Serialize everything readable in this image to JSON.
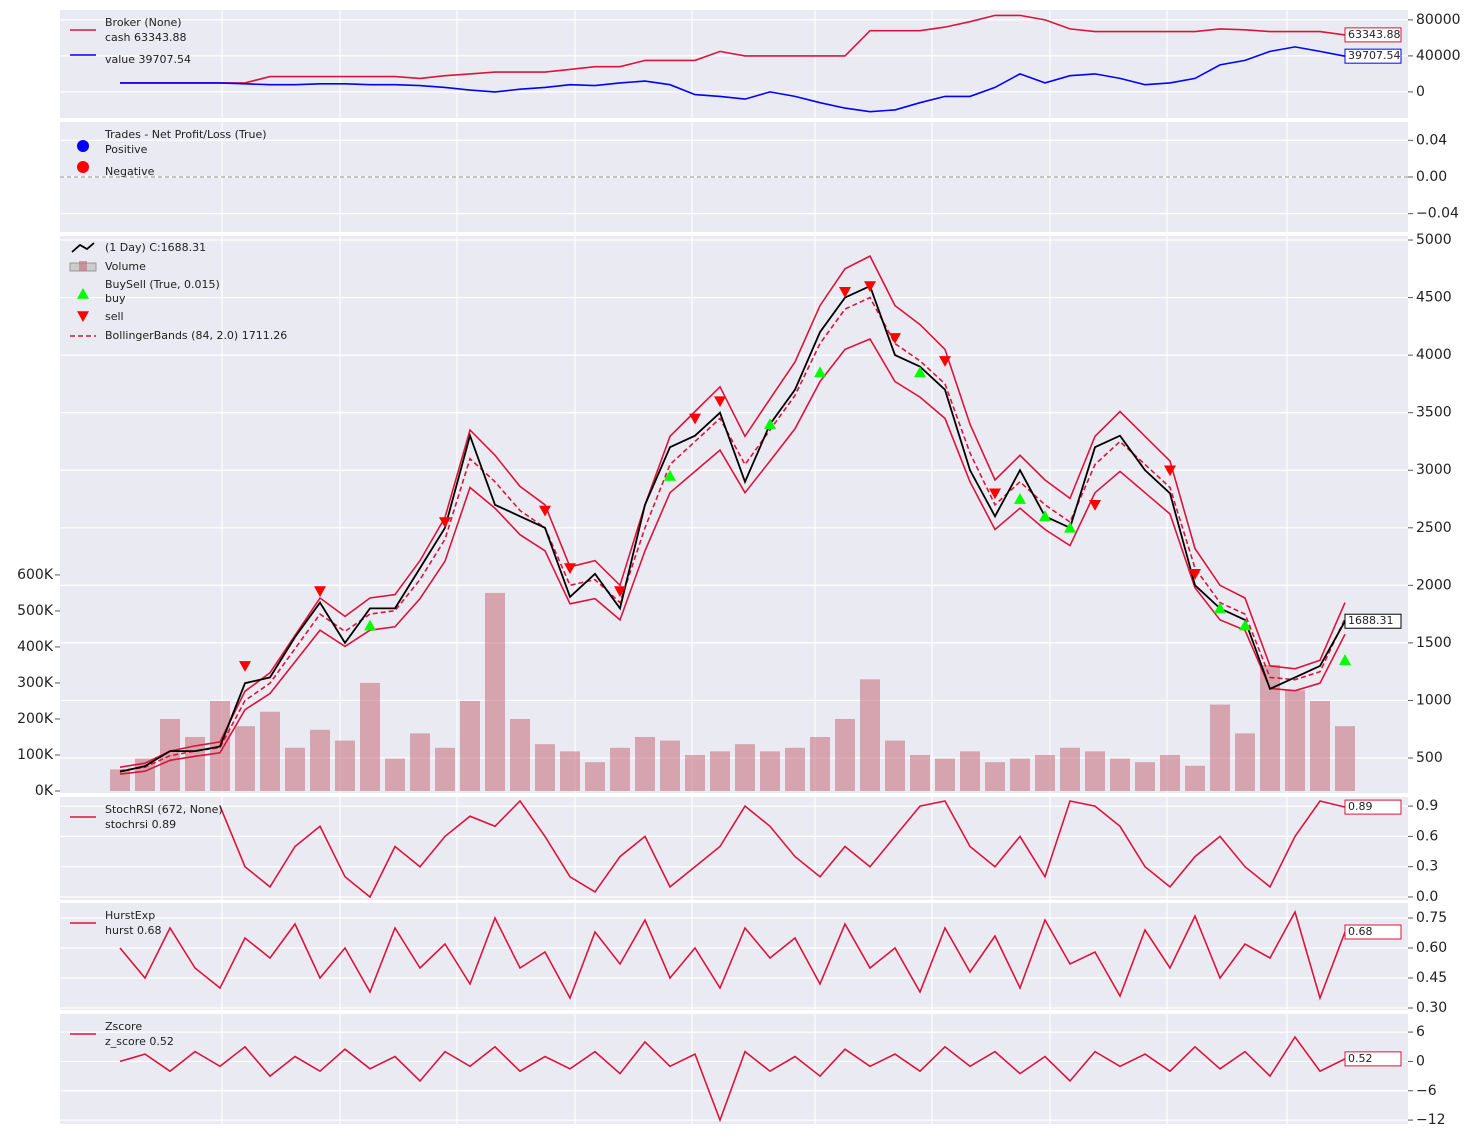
{
  "chart_data": [
    {
      "type": "line",
      "legend_title": "Broker (None)",
      "series": [
        {
          "name": "cash 63343.88",
          "color": "#dc143c",
          "values": [
            10000,
            10000,
            10000,
            10000,
            10000,
            10000,
            17000,
            17000,
            17000,
            17000,
            17000,
            17000,
            15000,
            18000,
            20000,
            22000,
            22000,
            22000,
            25000,
            28000,
            28000,
            35000,
            35000,
            35000,
            45000,
            40000,
            40000,
            40000,
            40000,
            40000,
            68000,
            68000,
            68000,
            72000,
            78000,
            85000,
            85000,
            80000,
            70000,
            67000,
            67000,
            67000,
            67000,
            67000,
            70000,
            69000,
            67000,
            67000,
            67000,
            63343.88
          ]
        },
        {
          "name": "value 39707.54",
          "color": "#0000ff",
          "values": [
            10000,
            10000,
            10000,
            10000,
            10000,
            9000,
            8000,
            8000,
            9000,
            9000,
            8000,
            8000,
            7000,
            5000,
            2000,
            0,
            3000,
            5000,
            8000,
            7000,
            10000,
            12000,
            8000,
            -3000,
            -5000,
            -8000,
            0,
            -5000,
            -12000,
            -18000,
            -22000,
            -20000,
            -12000,
            -5000,
            -5000,
            5000,
            20000,
            10000,
            18000,
            20000,
            15000,
            8000,
            10000,
            15000,
            30000,
            35000,
            45000,
            50000,
            45000,
            39707.54
          ]
        }
      ],
      "ylim": [
        -29000,
        91000
      ],
      "yticks": [
        0,
        40000,
        80000
      ],
      "grid": true
    },
    {
      "type": "scatter",
      "legend_title": "Trades - Net Profit/Loss (True)",
      "series": [
        {
          "name": "Positive",
          "color": "#0000ff"
        },
        {
          "name": "Negative",
          "color": "#ff0000"
        }
      ],
      "ylim": [
        -0.06,
        0.06
      ],
      "yticks": [
        {
          "value": -0.04,
          "label": "−0.04"
        },
        {
          "value": 0,
          "label": "0.00"
        },
        0.04
      ],
      "grid": true
    },
    {
      "type": "line",
      "close": {
        "name": " (1 Day) C:1688.31",
        "color": "#000000",
        "values": [
          380,
          430,
          560,
          560,
          600,
          1150,
          1200,
          1550,
          1850,
          1500,
          1800,
          1800,
          2150,
          2500,
          3300,
          2700,
          2600,
          2500,
          1900,
          2100,
          1800,
          2700,
          3200,
          3300,
          3500,
          2900,
          3400,
          3700,
          4200,
          4500,
          4600,
          4000,
          3900,
          3700,
          3000,
          2600,
          3000,
          2600,
          2500,
          3200,
          3300,
          3000,
          2800,
          2000,
          1800,
          1700,
          1100,
          1200,
          1300,
          1688.31
        ]
      },
      "volume": {
        "name": "Volume",
        "color": "#c46a78",
        "values": [
          60000,
          90000,
          200000,
          150000,
          250000,
          180000,
          220000,
          120000,
          170000,
          140000,
          300000,
          90000,
          160000,
          120000,
          250000,
          550000,
          200000,
          130000,
          110000,
          80000,
          120000,
          150000,
          140000,
          100000,
          110000,
          130000,
          110000,
          120000,
          150000,
          200000,
          310000,
          140000,
          100000,
          90000,
          110000,
          80000,
          90000,
          100000,
          120000,
          110000,
          90000,
          80000,
          100000,
          70000,
          240000,
          160000,
          350000,
          280000,
          250000,
          180000
        ],
        "ylim": [
          0,
          1541000
        ],
        "yticks": [
          {
            "value": 0,
            "label": "0K"
          },
          {
            "value": 100000,
            "label": "100K"
          },
          {
            "value": 200000,
            "label": "200K"
          },
          {
            "value": 300000,
            "label": "300K"
          },
          {
            "value": 400000,
            "label": "400K"
          },
          {
            "value": 500000,
            "label": "500K"
          },
          {
            "value": 600000,
            "label": "600K"
          }
        ]
      },
      "buysell": {
        "name": "BuySell (True, 0.015)",
        "series": [
          {
            "name": "buy",
            "color": "#00ff00",
            "values": [
              null,
              null,
              null,
              null,
              null,
              null,
              null,
              null,
              null,
              null,
              1650,
              null,
              null,
              null,
              null,
              null,
              null,
              null,
              null,
              null,
              null,
              null,
              2950,
              null,
              null,
              null,
              3400,
              null,
              3850,
              null,
              null,
              null,
              3850,
              null,
              null,
              null,
              2750,
              2600,
              2500,
              null,
              null,
              null,
              null,
              null,
              1800,
              1650,
              null,
              null,
              null,
              1350
            ]
          },
          {
            "name": "sell",
            "color": "#ff0000",
            "values": [
              null,
              null,
              null,
              null,
              null,
              1300,
              null,
              null,
              1950,
              null,
              null,
              null,
              null,
              2550,
              null,
              null,
              null,
              2650,
              2150,
              null,
              1950,
              null,
              null,
              3450,
              3600,
              null,
              null,
              null,
              null,
              4550,
              4600,
              4150,
              null,
              3950,
              null,
              2800,
              null,
              null,
              null,
              2700,
              null,
              null,
              3000,
              2100,
              null,
              null,
              null,
              null,
              null,
              null
            ]
          }
        ]
      },
      "bollinger": {
        "name": "BollingerBands (84, 2.0) 1711.26",
        "color": "#dc143c",
        "mid": [
          390,
          420,
          520,
          560,
          590,
          1000,
          1150,
          1450,
          1750,
          1600,
          1750,
          1780,
          2050,
          2400,
          3100,
          2900,
          2650,
          2500,
          2000,
          2050,
          1850,
          2500,
          3050,
          3250,
          3450,
          3050,
          3350,
          3650,
          4100,
          4400,
          4500,
          4100,
          3950,
          3750,
          3150,
          2700,
          2900,
          2700,
          2550,
          3050,
          3250,
          3050,
          2850,
          2150,
          1850,
          1750,
          1200,
          1180,
          1250,
          1711.26
        ],
        "top": [
          420,
          455,
          560,
          605,
          640,
          1080,
          1240,
          1565,
          1890,
          1730,
          1890,
          1920,
          2215,
          2590,
          3350,
          3130,
          2860,
          2700,
          2160,
          2215,
          2000,
          2700,
          3295,
          3510,
          3725,
          3295,
          3620,
          3940,
          4430,
          4750,
          4860,
          4430,
          4265,
          4050,
          3400,
          2915,
          3130,
          2915,
          2755,
          3295,
          3510,
          3295,
          3080,
          2320,
          2000,
          1890,
          1300,
          1275,
          1350,
          1850
        ],
        "bot": [
          360,
          385,
          480,
          515,
          545,
          920,
          1060,
          1335,
          1610,
          1470,
          1610,
          1640,
          1885,
          2210,
          2850,
          2670,
          2440,
          2300,
          1840,
          1885,
          1700,
          2300,
          2805,
          2990,
          3175,
          2805,
          3080,
          3360,
          3770,
          4050,
          4140,
          3770,
          3635,
          3450,
          2900,
          2485,
          2670,
          2485,
          2345,
          2805,
          2990,
          2805,
          2620,
          1980,
          1700,
          1610,
          1105,
          1085,
          1150,
          1575
        ]
      },
      "ylim": [
        196,
        5035
      ],
      "yticks": [
        500,
        1000,
        1500,
        2000,
        2500,
        3000,
        3500,
        4000,
        4500,
        5000
      ],
      "grid": true
    },
    {
      "type": "line",
      "legend_title": "StochRSI (672, None)",
      "series": [
        {
          "name": "stochrsi 0.89",
          "color": "#dc143c",
          "values": [
            null,
            null,
            null,
            null,
            0.9,
            0.3,
            0.1,
            0.5,
            0.7,
            0.2,
            0.0,
            0.5,
            0.3,
            0.6,
            0.8,
            0.7,
            0.95,
            0.6,
            0.2,
            0.05,
            0.4,
            0.6,
            0.1,
            0.3,
            0.5,
            0.9,
            0.7,
            0.4,
            0.2,
            0.5,
            0.3,
            0.6,
            0.9,
            0.95,
            0.5,
            0.3,
            0.6,
            0.2,
            0.95,
            0.9,
            0.7,
            0.3,
            0.1,
            0.4,
            0.6,
            0.3,
            0.1,
            0.6,
            0.95,
            0.89
          ]
        }
      ],
      "ylim": [
        -0.03,
        0.99
      ],
      "yticks": [
        {
          "value": 0,
          "label": "0.0"
        },
        0.3,
        0.6,
        0.9
      ],
      "grid": true
    },
    {
      "type": "line",
      "legend_title": "HurstExp",
      "series": [
        {
          "name": "hurst 0.68",
          "color": "#dc143c",
          "values": [
            0.6,
            0.45,
            0.7,
            0.5,
            0.4,
            0.65,
            0.55,
            0.72,
            0.45,
            0.6,
            0.38,
            0.7,
            0.5,
            0.62,
            0.42,
            0.75,
            0.5,
            0.58,
            0.35,
            0.68,
            0.52,
            0.74,
            0.45,
            0.6,
            0.4,
            0.7,
            0.55,
            0.65,
            0.42,
            0.72,
            0.5,
            0.6,
            0.38,
            0.7,
            0.48,
            0.66,
            0.4,
            0.74,
            0.52,
            0.58,
            0.36,
            0.69,
            0.5,
            0.76,
            0.45,
            0.62,
            0.55,
            0.78,
            0.35,
            0.68
          ]
        }
      ],
      "ylim": [
        0.29,
        0.825
      ],
      "yticks": [
        {
          "value": 0.3,
          "label": "0.30"
        },
        0.45,
        {
          "value": 0.6,
          "label": "0.60"
        },
        0.75
      ],
      "grid": true
    },
    {
      "type": "line",
      "legend_title": "Zscore",
      "series": [
        {
          "name": "z_score 0.52",
          "color": "#dc143c",
          "values": [
            0,
            1.5,
            -2,
            2,
            -1,
            3,
            -3,
            1,
            -2,
            2.5,
            -1.5,
            1,
            -4,
            2,
            -1,
            3,
            -2,
            1,
            -1.5,
            2,
            -2.5,
            4,
            -1,
            1.5,
            -12,
            2,
            -2,
            1,
            -3,
            2.5,
            -1,
            1.5,
            -2,
            3,
            -1,
            2,
            -2.5,
            1,
            -4,
            2,
            -1,
            1.5,
            -2,
            3,
            -1.5,
            2,
            -3,
            5,
            -2,
            0.52
          ]
        }
      ],
      "ylim": [
        -12.8,
        9.7
      ],
      "yticks": [
        {
          "value": -12,
          "label": "−12"
        },
        {
          "value": -6,
          "label": "−6"
        },
        0,
        6
      ],
      "grid": true
    }
  ]
}
